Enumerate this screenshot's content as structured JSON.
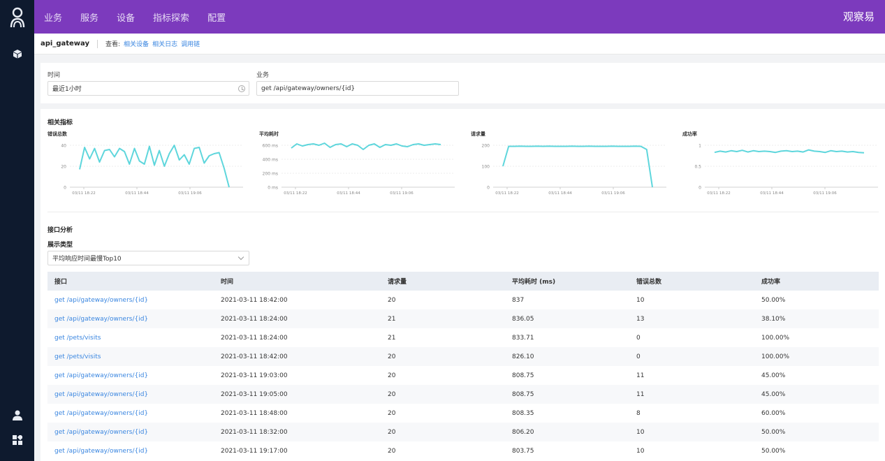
{
  "brand": "观察易",
  "nav": [
    "业务",
    "服务",
    "设备",
    "指标探索",
    "配置"
  ],
  "breadcrumb": {
    "title": "api_gateway",
    "view_label": "查看:",
    "links": [
      "相关设备",
      "相关日志",
      "调用链"
    ]
  },
  "filters": {
    "time_label": "时间",
    "time_value": "最近1小时",
    "business_label": "业务",
    "business_value": "get /api/gateway/owners/{id}"
  },
  "metrics_title": "相关指标",
  "analysis": {
    "title": "接口分析",
    "type_label": "展示类型",
    "type_value": "平均响应时间最慢Top10"
  },
  "accent_color": "#5ed6dc",
  "chart_data": [
    {
      "type": "line",
      "title": "错误总数",
      "x_ticks": [
        "03/11 18:22",
        "03/11 18:44",
        "03/11 19:06"
      ],
      "y_ticks": [
        "40",
        "20",
        "0"
      ],
      "ylim": [
        0,
        40
      ],
      "values": [
        17,
        38,
        27,
        37,
        24,
        35,
        36,
        29,
        37,
        34,
        22,
        37,
        25,
        22,
        39,
        21,
        35,
        20,
        32,
        40,
        26,
        31,
        22,
        37,
        38,
        23,
        30,
        32,
        33,
        18,
        0
      ]
    },
    {
      "type": "line",
      "title": "平均耗时",
      "x_ticks": [
        "03/11 18:22",
        "03/11 18:44",
        "03/11 19:06"
      ],
      "y_ticks": [
        "600 ms",
        "400 ms",
        "200 ms",
        "0 ms"
      ],
      "ylim": [
        0,
        600
      ],
      "values": [
        560,
        620,
        590,
        610,
        620,
        600,
        630,
        570,
        610,
        620,
        580,
        620,
        600,
        540,
        600,
        620,
        570,
        610,
        600,
        620,
        590,
        580,
        610,
        620,
        600,
        610,
        620,
        610
      ]
    },
    {
      "type": "line",
      "title": "请求量",
      "x_ticks": [
        "03/11 18:22",
        "03/11 18:44",
        "03/11 19:06"
      ],
      "y_ticks": [
        "200",
        "100",
        "0"
      ],
      "ylim": [
        0,
        200
      ],
      "values": [
        100,
        195,
        195,
        196,
        195,
        195,
        196,
        195,
        196,
        195,
        195,
        195,
        196,
        195,
        195,
        196,
        195,
        195,
        195,
        196,
        195,
        195,
        195,
        196,
        195,
        180,
        0
      ]
    },
    {
      "type": "line",
      "title": "成功率",
      "x_ticks": [
        "03/11 18:22",
        "03/11 18:44",
        "03/11 19:06"
      ],
      "y_ticks": [
        "1",
        "0.5",
        "0"
      ],
      "ylim": [
        0,
        1
      ],
      "values": [
        0.83,
        0.86,
        0.84,
        0.87,
        0.85,
        0.88,
        0.84,
        0.87,
        0.85,
        0.86,
        0.85,
        0.83,
        0.86,
        0.87,
        0.85,
        0.86,
        0.84,
        0.89,
        0.86,
        0.85,
        0.83,
        0.87,
        0.85,
        0.86,
        0.84,
        0.85,
        0.83,
        0.82
      ]
    }
  ],
  "table": {
    "headers": [
      "接口",
      "时间",
      "请求量",
      "平均耗时 (ms)",
      "错误总数",
      "成功率"
    ],
    "rows": [
      [
        "get /api/gateway/owners/{id}",
        "2021-03-11 18:42:00",
        "20",
        "837",
        "10",
        "50.00%"
      ],
      [
        "get /api/gateway/owners/{id}",
        "2021-03-11 18:24:00",
        "21",
        "836.05",
        "13",
        "38.10%"
      ],
      [
        "get /pets/visits",
        "2021-03-11 18:24:00",
        "21",
        "833.71",
        "0",
        "100.00%"
      ],
      [
        "get /pets/visits",
        "2021-03-11 18:42:00",
        "20",
        "826.10",
        "0",
        "100.00%"
      ],
      [
        "get /api/gateway/owners/{id}",
        "2021-03-11 19:03:00",
        "20",
        "808.75",
        "11",
        "45.00%"
      ],
      [
        "get /api/gateway/owners/{id}",
        "2021-03-11 19:05:00",
        "20",
        "808.75",
        "11",
        "45.00%"
      ],
      [
        "get /api/gateway/owners/{id}",
        "2021-03-11 18:48:00",
        "20",
        "808.35",
        "8",
        "60.00%"
      ],
      [
        "get /api/gateway/owners/{id}",
        "2021-03-11 18:32:00",
        "20",
        "806.20",
        "10",
        "50.00%"
      ],
      [
        "get /api/gateway/owners/{id}",
        "2021-03-11 19:17:00",
        "20",
        "803.75",
        "10",
        "50.00%"
      ]
    ]
  }
}
